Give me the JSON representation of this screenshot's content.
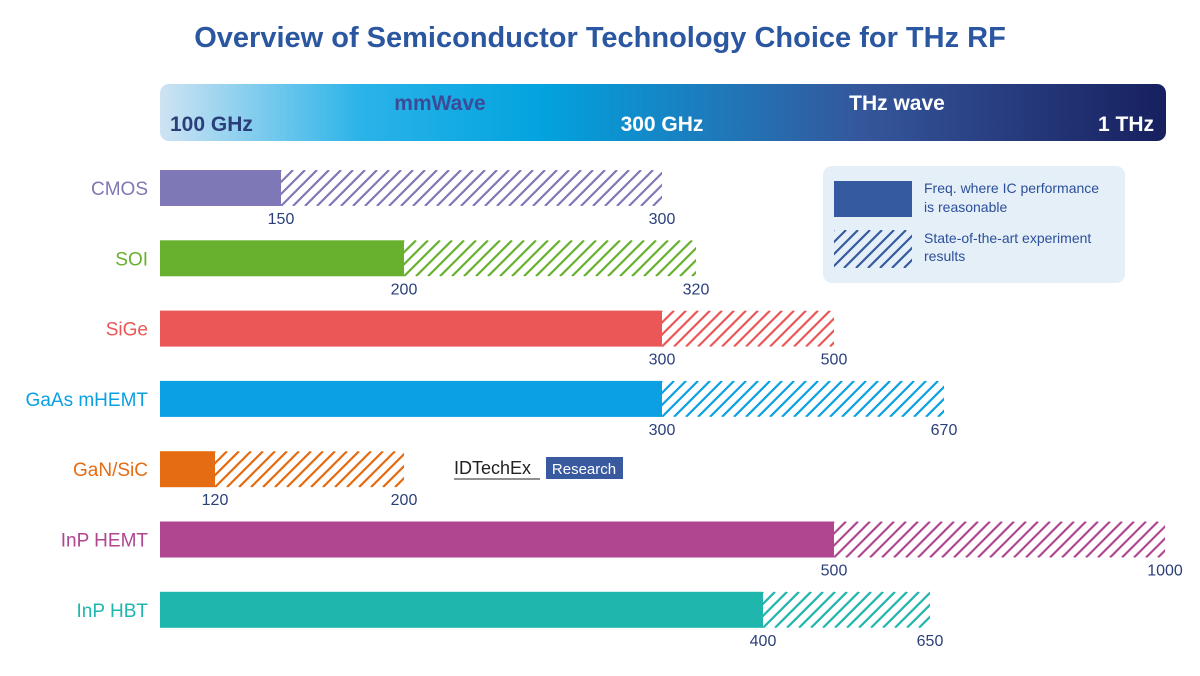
{
  "chart_data": {
    "type": "bar",
    "title": "Overview of Semiconductor Technology Choice for THz RF",
    "x_scale": "frequency (GHz), nonlinear",
    "xlim": [
      100,
      1000
    ],
    "band": {
      "mmwave_label": "mmWave",
      "thz_label": "THz wave",
      "tick_100": "100 GHz",
      "tick_300": "300 GHz",
      "tick_1000": "1 THz"
    },
    "legend": {
      "solid": "Freq. where IC performance is reasonable",
      "solid_line1": "Freq. where IC performance",
      "solid_line2": "is reasonable",
      "hatched": "State-of-the-art experiment results",
      "hatched_line1": "State-of-the-art experiment",
      "hatched_line2": "results",
      "position": "top-right"
    },
    "categories": [
      "CMOS",
      "SOI",
      "SiGe",
      "GaAs mHEMT",
      "GaN/SiC",
      "InP HEMT",
      "InP HBT"
    ],
    "series": [
      {
        "name": "Freq. where IC performance is reasonable",
        "values": [
          150,
          200,
          300,
          300,
          120,
          500,
          400
        ]
      },
      {
        "name": "State-of-the-art experiment results",
        "values": [
          300,
          320,
          500,
          670,
          200,
          1000,
          650
        ]
      }
    ],
    "colors": [
      "#7f78b6",
      "#68b12f",
      "#eb5757",
      "#0aa0e2",
      "#e56c12",
      "#b04690",
      "#1fb6ad"
    ],
    "grid": false
  },
  "watermark": {
    "brand": "IDTechEx",
    "tag": "Research"
  }
}
